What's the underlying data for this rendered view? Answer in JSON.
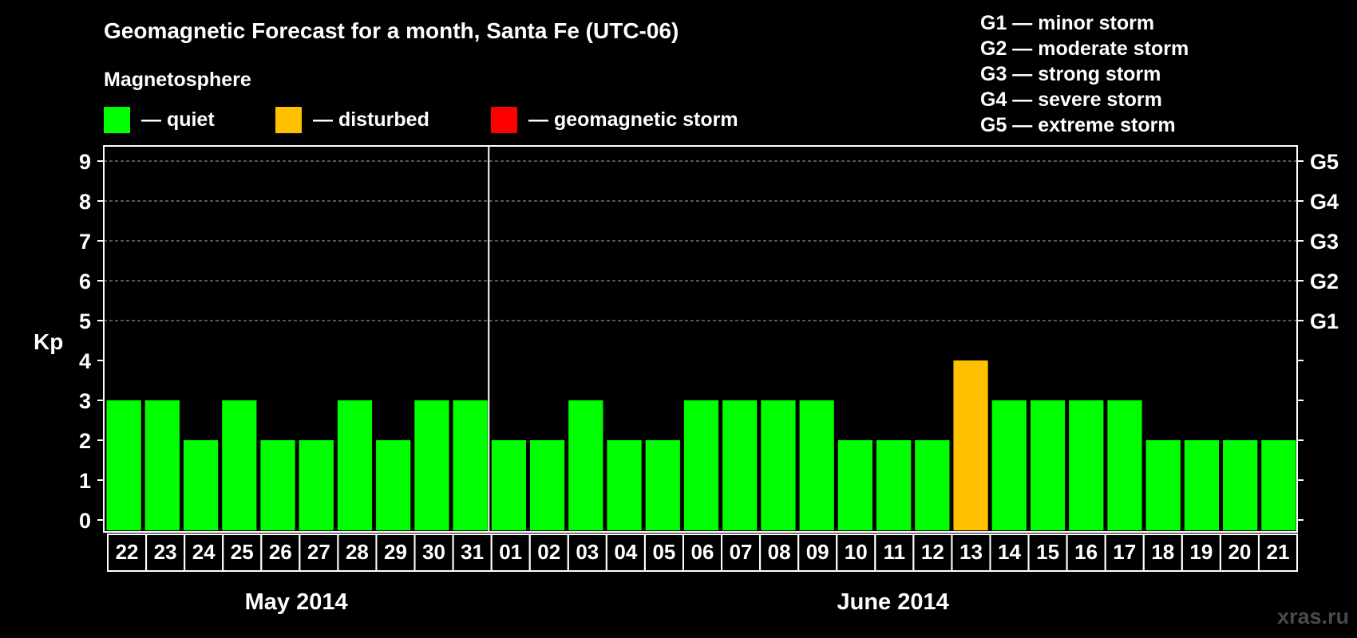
{
  "colors": {
    "quiet": "#00ff00",
    "disturbed": "#ffc000",
    "storm": "#ff0000",
    "background": "#000000",
    "foreground": "#ffffff",
    "watermark": "#4a4a4a"
  },
  "header": {
    "title": "Geomagnetic Forecast for a month, Santa Fe (UTC-06)",
    "magnetosphere_label": "Magnetosphere",
    "legend": [
      {
        "key": "quiet",
        "label": "— quiet"
      },
      {
        "key": "disturbed",
        "label": "— disturbed"
      },
      {
        "key": "storm",
        "label": "— geomagnetic storm"
      }
    ],
    "storm_scale": [
      "G1 — minor storm",
      "G2 — moderate storm",
      "G3 — strong storm",
      "G4 — severe storm",
      "G5 — extreme storm"
    ]
  },
  "watermark": "xras.ru",
  "chart_data": {
    "type": "bar",
    "title": "Geomagnetic Forecast for a month, Santa Fe (UTC-06)",
    "ylabel": "Kp",
    "xlabel": "",
    "ylim": [
      0,
      9
    ],
    "yticks": [
      "0",
      "1",
      "2",
      "3",
      "4",
      "5",
      "6",
      "7",
      "8",
      "9"
    ],
    "right_ticks": [
      {
        "kp": 5,
        "label": "G1"
      },
      {
        "kp": 6,
        "label": "G2"
      },
      {
        "kp": 7,
        "label": "G3"
      },
      {
        "kp": 8,
        "label": "G4"
      },
      {
        "kp": 9,
        "label": "G5"
      }
    ],
    "grid_from_kp": 5,
    "categories": [
      "22",
      "23",
      "24",
      "25",
      "26",
      "27",
      "28",
      "29",
      "30",
      "31",
      "01",
      "02",
      "03",
      "04",
      "05",
      "06",
      "07",
      "08",
      "09",
      "10",
      "11",
      "12",
      "13",
      "14",
      "15",
      "16",
      "17",
      "18",
      "19",
      "20",
      "21"
    ],
    "values": [
      3,
      3,
      2,
      3,
      2,
      2,
      3,
      2,
      3,
      3,
      2,
      2,
      3,
      2,
      2,
      3,
      3,
      3,
      3,
      2,
      2,
      2,
      4,
      3,
      3,
      3,
      3,
      2,
      2,
      2,
      2
    ],
    "status": [
      "quiet",
      "quiet",
      "quiet",
      "quiet",
      "quiet",
      "quiet",
      "quiet",
      "quiet",
      "quiet",
      "quiet",
      "quiet",
      "quiet",
      "quiet",
      "quiet",
      "quiet",
      "quiet",
      "quiet",
      "quiet",
      "quiet",
      "quiet",
      "quiet",
      "quiet",
      "disturbed",
      "quiet",
      "quiet",
      "quiet",
      "quiet",
      "quiet",
      "quiet",
      "quiet",
      "quiet"
    ],
    "months": [
      {
        "label": "May 2014",
        "start": 0,
        "end": 9
      },
      {
        "label": "June 2014",
        "start": 10,
        "end": 30
      }
    ]
  }
}
